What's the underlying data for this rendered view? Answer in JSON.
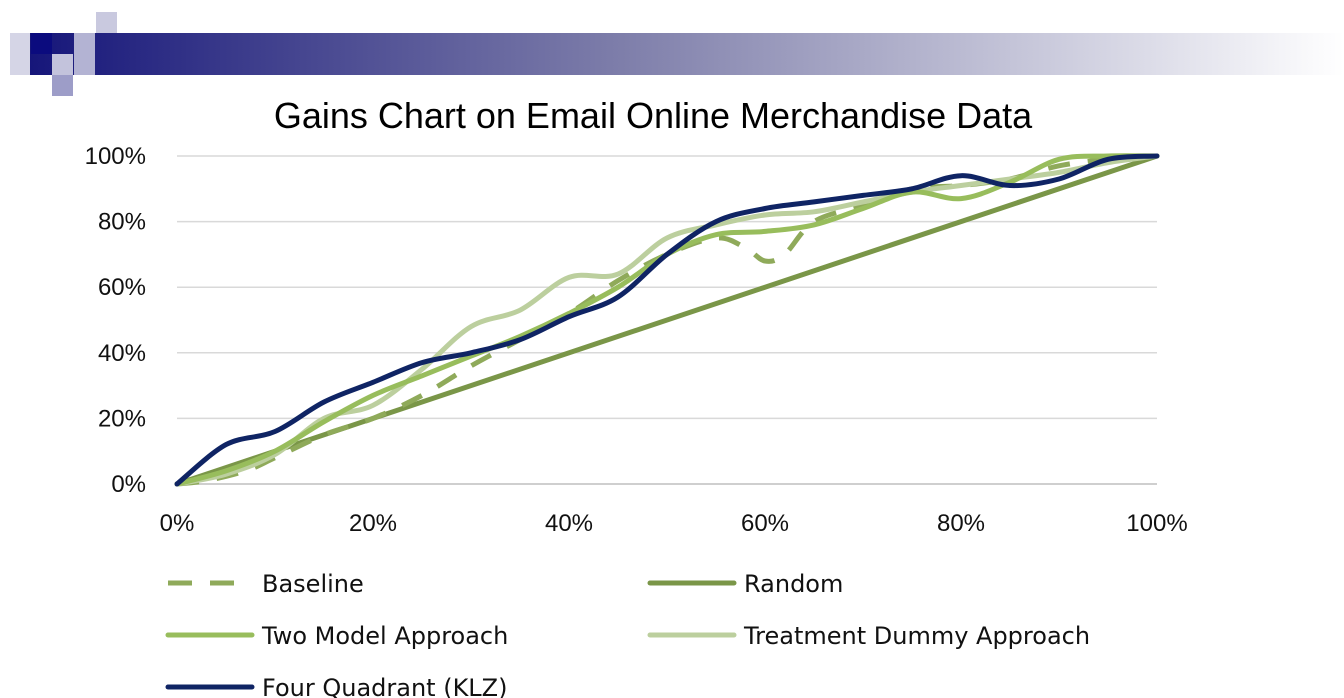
{
  "colors": {
    "banner_dark": "#16167a",
    "banner_fade": "#ffffff",
    "decor_square_dark": "#0b0b7e",
    "decor_square_light": "#b8b8d8",
    "grid": "#d9d9d9",
    "axis": "#bfbfbf"
  },
  "chart_data": {
    "type": "line",
    "title": "Gains Chart on Email Online Merchandise Data",
    "xlabel": "",
    "ylabel": "",
    "xlim": [
      0,
      100
    ],
    "ylim": [
      0,
      100
    ],
    "x_tick_values": [
      0,
      20,
      40,
      60,
      80,
      100
    ],
    "x_tick_labels": [
      "0%",
      "20%",
      "40%",
      "60%",
      "80%",
      "100%"
    ],
    "y_tick_values": [
      0,
      20,
      40,
      60,
      80,
      100
    ],
    "y_tick_labels": [
      "0%",
      "20%",
      "40%",
      "60%",
      "80%",
      "100%"
    ],
    "grid": "horizontal",
    "legend_position": "bottom",
    "series": [
      {
        "name": "Baseline",
        "color": "#8faa5a",
        "dash": "dashed",
        "points": [
          [
            0,
            0
          ],
          [
            3,
            1
          ],
          [
            7,
            4
          ],
          [
            10,
            8
          ],
          [
            15,
            15
          ],
          [
            20,
            20
          ],
          [
            25,
            27
          ],
          [
            30,
            36
          ],
          [
            35,
            44
          ],
          [
            40,
            52
          ],
          [
            45,
            62
          ],
          [
            50,
            70
          ],
          [
            55,
            75
          ],
          [
            58,
            72
          ],
          [
            60,
            68
          ],
          [
            62,
            70
          ],
          [
            65,
            80
          ],
          [
            70,
            85
          ],
          [
            75,
            90
          ],
          [
            80,
            91
          ],
          [
            85,
            93
          ],
          [
            90,
            97
          ],
          [
            95,
            99
          ],
          [
            100,
            100
          ]
        ]
      },
      {
        "name": "Random",
        "color": "#7a9648",
        "dash": "solid",
        "points": [
          [
            0,
            0
          ],
          [
            100,
            100
          ]
        ]
      },
      {
        "name": "Two Model Approach",
        "color": "#98bd5c",
        "dash": "solid",
        "points": [
          [
            0,
            0
          ],
          [
            5,
            4
          ],
          [
            10,
            10
          ],
          [
            15,
            19
          ],
          [
            20,
            27
          ],
          [
            25,
            33
          ],
          [
            30,
            39
          ],
          [
            35,
            45
          ],
          [
            40,
            52
          ],
          [
            45,
            60
          ],
          [
            50,
            70
          ],
          [
            55,
            76
          ],
          [
            60,
            77
          ],
          [
            65,
            79
          ],
          [
            70,
            84
          ],
          [
            75,
            89
          ],
          [
            80,
            87
          ],
          [
            85,
            92
          ],
          [
            90,
            99
          ],
          [
            95,
            100
          ],
          [
            100,
            100
          ]
        ]
      },
      {
        "name": "Treatment Dummy Approach",
        "color": "#bccf9e",
        "dash": "solid",
        "points": [
          [
            0,
            0
          ],
          [
            5,
            3
          ],
          [
            10,
            9
          ],
          [
            15,
            20
          ],
          [
            20,
            24
          ],
          [
            25,
            35
          ],
          [
            30,
            48
          ],
          [
            35,
            53
          ],
          [
            40,
            63
          ],
          [
            45,
            64
          ],
          [
            50,
            75
          ],
          [
            55,
            79
          ],
          [
            60,
            82
          ],
          [
            65,
            83
          ],
          [
            70,
            86
          ],
          [
            75,
            89
          ],
          [
            80,
            91
          ],
          [
            85,
            93
          ],
          [
            90,
            95
          ],
          [
            95,
            98
          ],
          [
            100,
            100
          ]
        ]
      },
      {
        "name": "Four Quadrant (KLZ)",
        "color": "#0f2464",
        "dash": "solid",
        "points": [
          [
            0,
            0
          ],
          [
            5,
            12
          ],
          [
            10,
            16
          ],
          [
            15,
            25
          ],
          [
            20,
            31
          ],
          [
            25,
            37
          ],
          [
            30,
            40
          ],
          [
            35,
            44
          ],
          [
            40,
            51
          ],
          [
            45,
            57
          ],
          [
            50,
            70
          ],
          [
            55,
            80
          ],
          [
            60,
            84
          ],
          [
            65,
            86
          ],
          [
            70,
            88
          ],
          [
            75,
            90
          ],
          [
            80,
            94
          ],
          [
            85,
            91
          ],
          [
            90,
            93
          ],
          [
            95,
            99
          ],
          [
            100,
            100
          ]
        ]
      }
    ]
  }
}
